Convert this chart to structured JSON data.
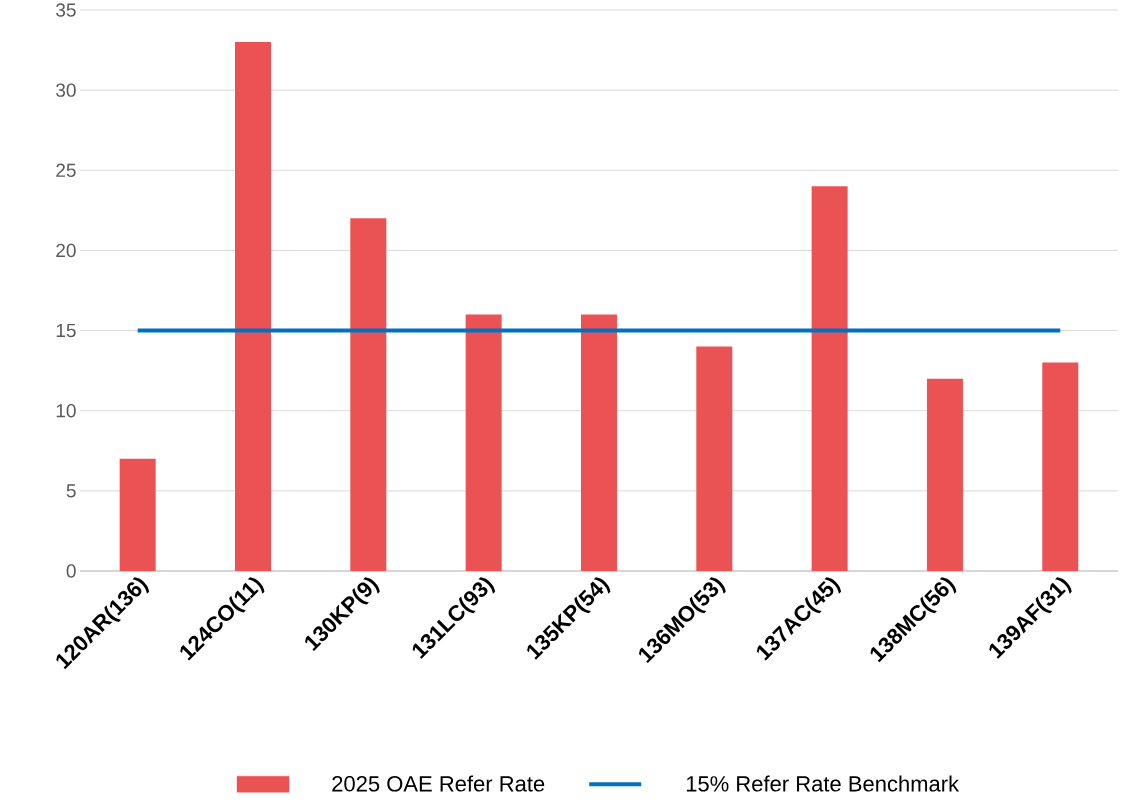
{
  "chart_data": {
    "type": "bar",
    "categories": [
      "120AR(136)",
      "124CO(11)",
      "130KP(9)",
      "131LC(93)",
      "135KP(54)",
      "136MO(53)",
      "137AC(45)",
      "138MC(56)",
      "139AF(31)"
    ],
    "series": [
      {
        "name": "2025 OAE Refer Rate",
        "color": "#eb5254",
        "values": [
          7,
          33,
          22,
          16,
          16,
          14,
          24,
          12,
          13
        ]
      },
      {
        "name": "15% Refer Rate Benchmark",
        "type": "line",
        "color": "#0070c0",
        "values": [
          15,
          15,
          15,
          15,
          15,
          15,
          15,
          15,
          15
        ]
      }
    ],
    "ylim": [
      0,
      35
    ],
    "yticks": [
      0,
      5,
      10,
      15,
      20,
      25,
      30,
      35
    ],
    "grid": "y",
    "legend": "bottom"
  }
}
